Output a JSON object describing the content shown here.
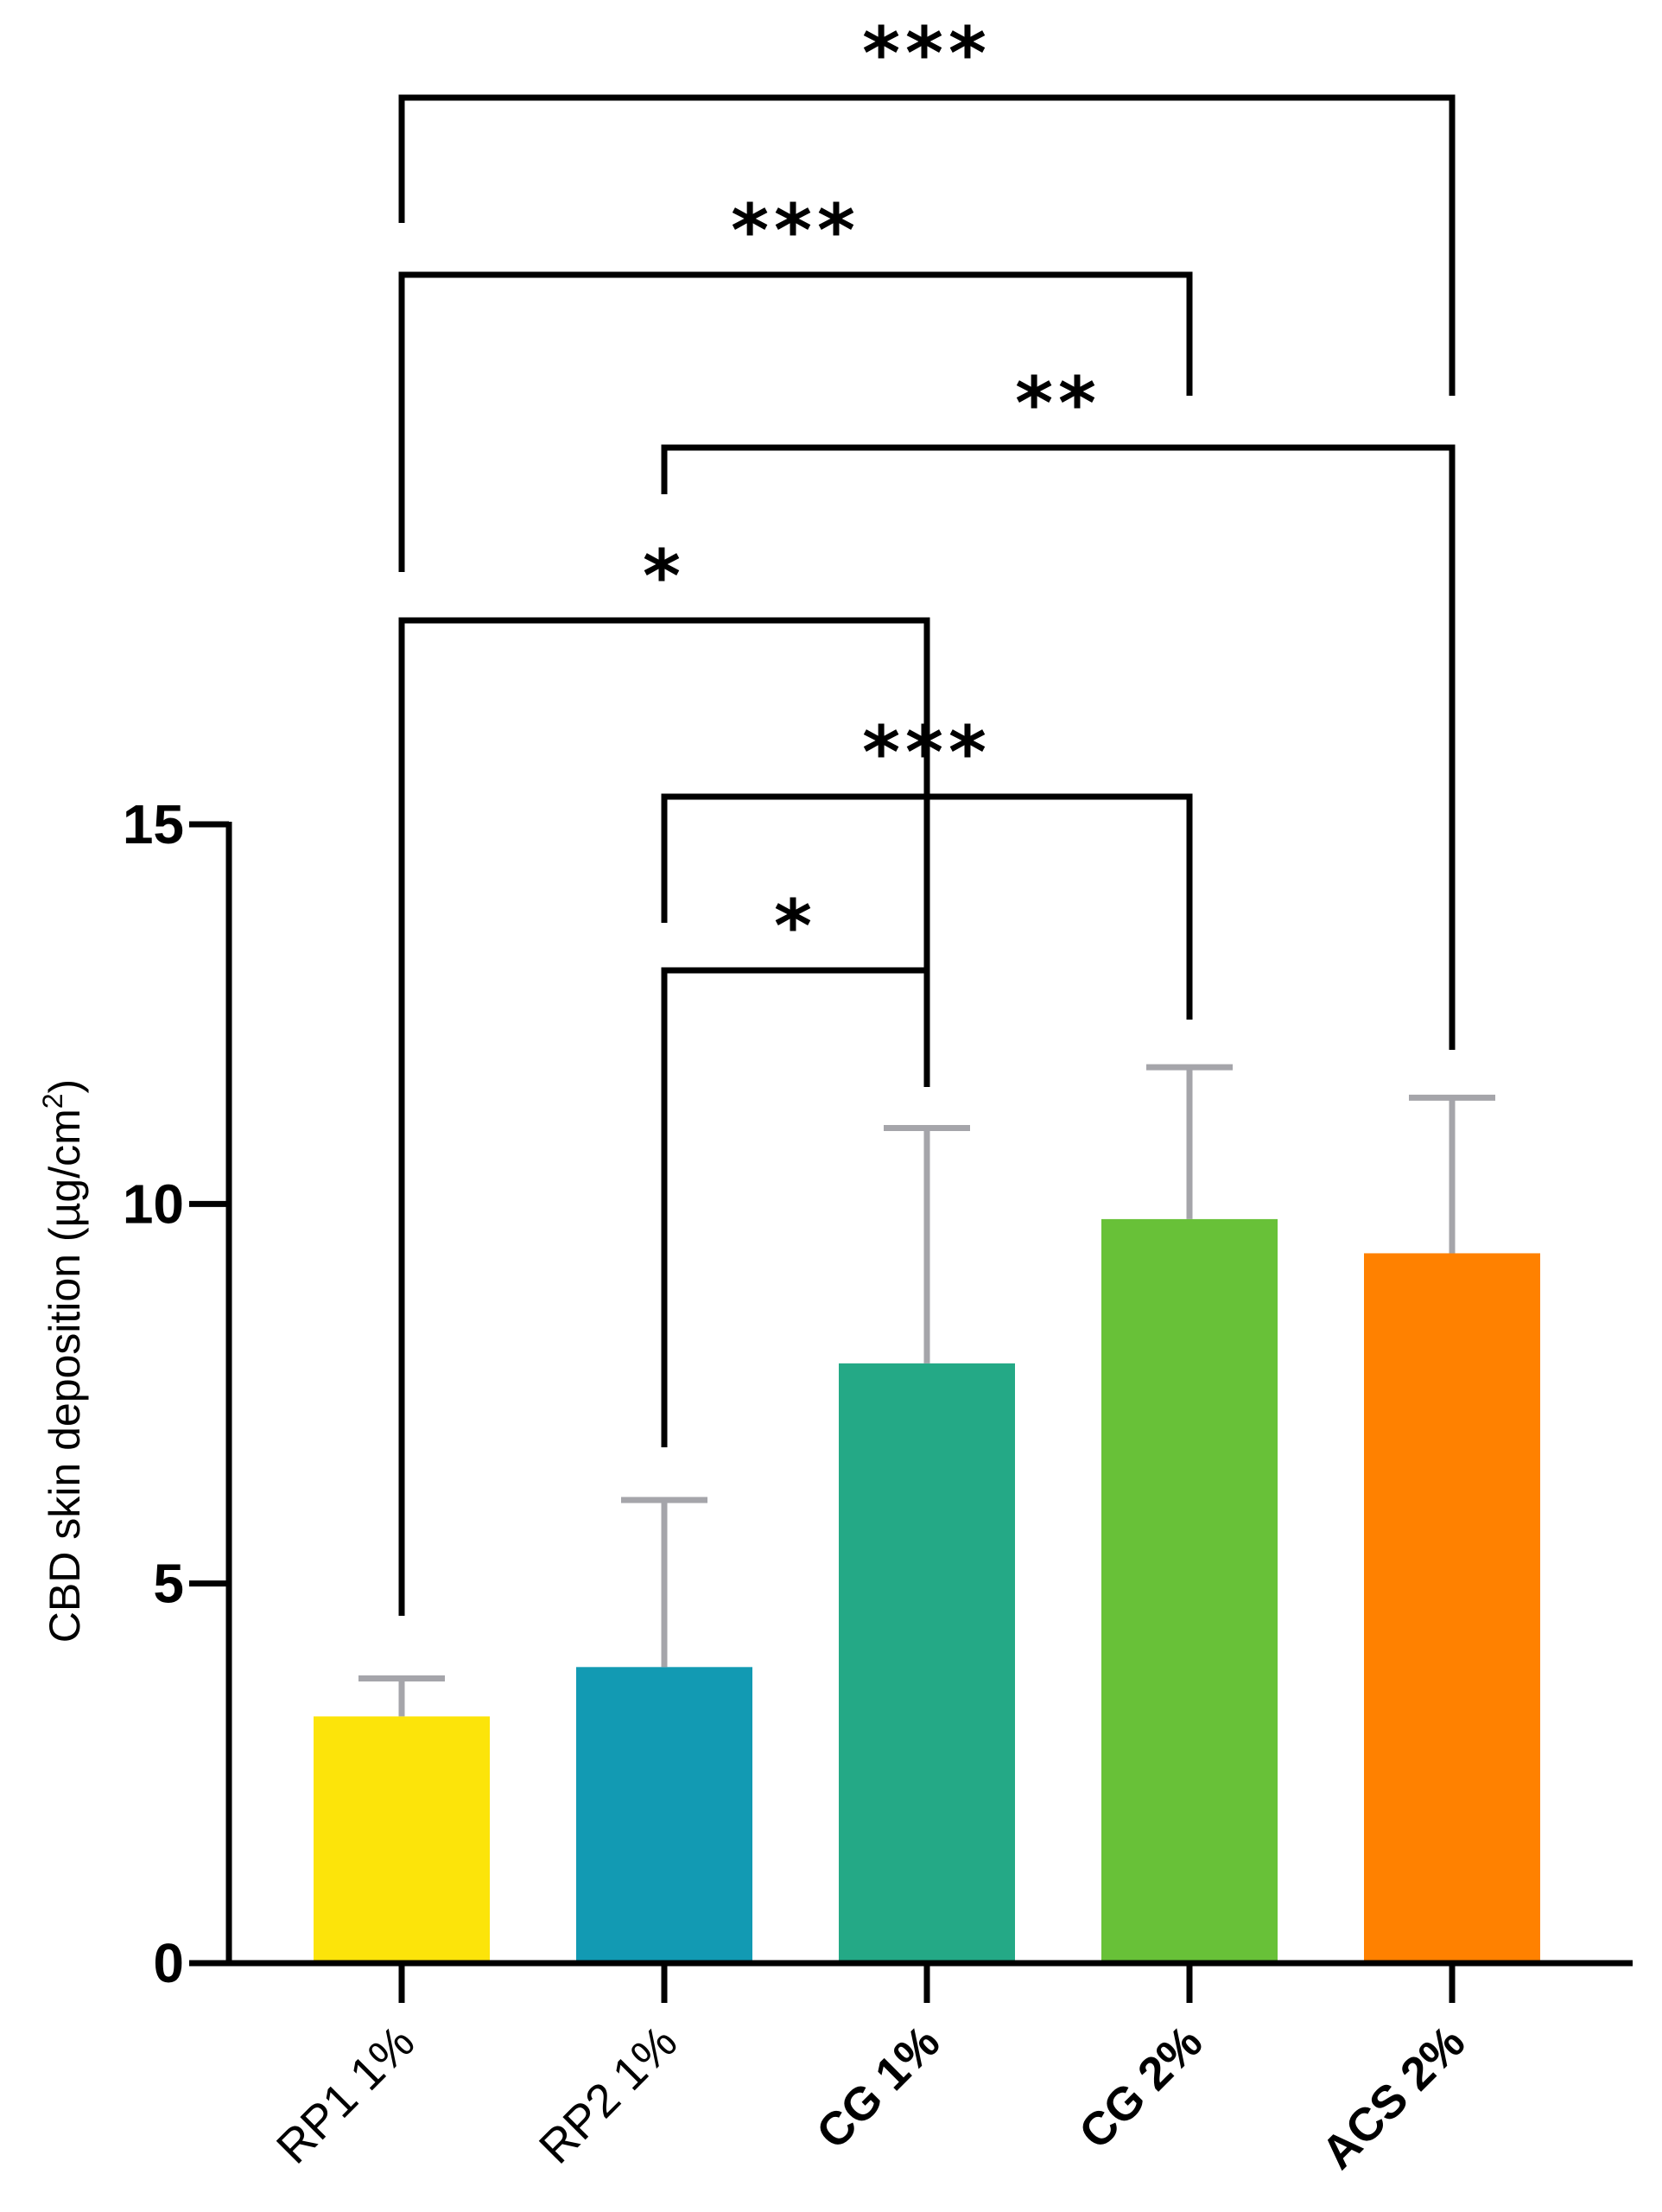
{
  "chart_data": {
    "type": "bar",
    "categories": [
      "RP1 1%",
      "RP2 1%",
      "CG 1%",
      "CG 2%",
      "ACS 2%"
    ],
    "bold_categories": [
      false,
      false,
      true,
      true,
      true
    ],
    "values": [
      3.25,
      3.9,
      7.9,
      9.8,
      9.35
    ],
    "errors": [
      0.5,
      2.2,
      3.1,
      2.0,
      2.05
    ],
    "colors": [
      "#FCE40A",
      "#129AB3",
      "#24A986",
      "#68C138",
      "#FF8100"
    ],
    "error_color": "#A5A5AA",
    "ylabel": "CBD skin deposition (µg/cm",
    "ylabel_sup": "2",
    "ylabel_close": ")",
    "ylim": [
      0,
      15
    ],
    "yticks": [
      0,
      5,
      10,
      15
    ],
    "grid": false,
    "significance": [
      {
        "from": 0,
        "to": 4,
        "label": "***"
      },
      {
        "from": 0,
        "to": 3,
        "label": "***"
      },
      {
        "from": 1,
        "to": 4,
        "label": "**"
      },
      {
        "from": 0,
        "to": 2,
        "label": "*"
      },
      {
        "from": 1,
        "to": 3,
        "label": "***"
      },
      {
        "from": 1,
        "to": 2,
        "label": "*"
      }
    ]
  }
}
